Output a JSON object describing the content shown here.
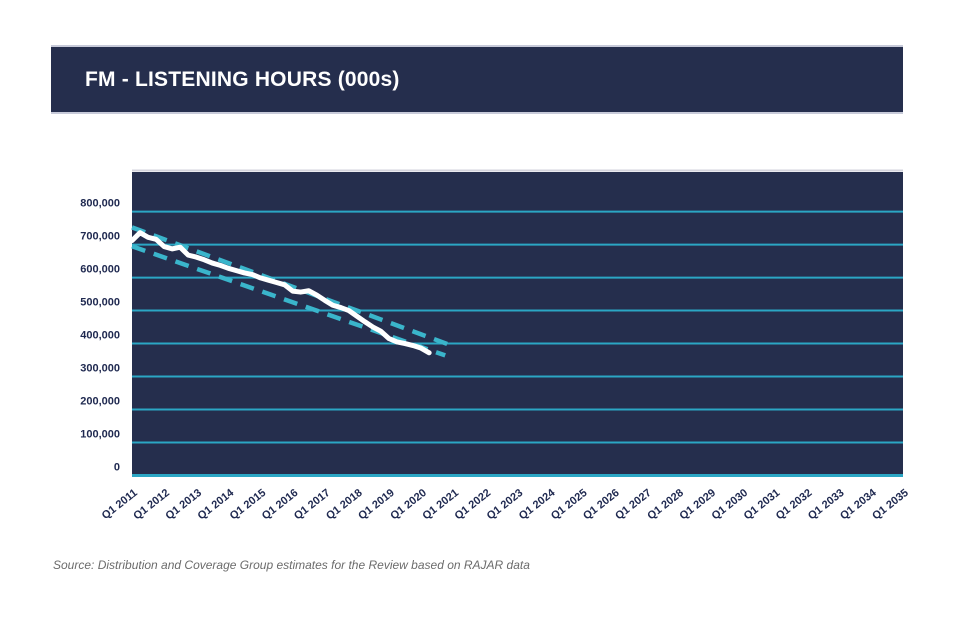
{
  "title": {
    "text": "FM - LISTENING HOURS (000s)"
  },
  "source_note": "Source: Distribution and Coverage Group estimates for the Review based on RAJAR data",
  "colors": {
    "navy": "#252E4D",
    "grid_teal": "#2BA6C4",
    "band_teal": "#3AB5CB",
    "series_white": "#FFFFFF",
    "axis_text": "#1F2950",
    "source_text": "#6B6B6B",
    "light_border": "#C7CAD9",
    "plot_top_border": "#D3D3DC",
    "page_bg": "#FFFFFF"
  },
  "chart_data": {
    "type": "line",
    "title": "FM - LISTENING HOURS (000s)",
    "grid": true,
    "legend": false,
    "x_axis": {
      "tick_labels": [
        "Q1 2011",
        "Q1 2012",
        "Q1 2013",
        "Q1 2014",
        "Q1 2015",
        "Q1 2016",
        "Q1 2017",
        "Q1 2018",
        "Q1 2019",
        "Q1 2020",
        "Q1 2021",
        "Q1 2022",
        "Q1 2023",
        "Q1 2024",
        "Q1 2025",
        "Q1 2026",
        "Q1 2027",
        "Q1 2028",
        "Q1 2029",
        "Q1 2030",
        "Q1 2031",
        "Q1 2032",
        "Q1 2033",
        "Q1 2034",
        "Q1 2035"
      ],
      "quarters_per_tick": 4,
      "total_quarters": 96,
      "label_rotation_deg": -38
    },
    "y_axis": {
      "ticks": [
        0,
        100000,
        200000,
        300000,
        400000,
        500000,
        600000,
        700000,
        800000
      ],
      "tick_labels": [
        "0",
        "100,000",
        "200,000",
        "300,000",
        "400,000",
        "500,000",
        "600,000",
        "700,000",
        "800,000"
      ],
      "max": 920000
    },
    "series": [
      {
        "name": "fm-listening-hours-actual",
        "style": "solid",
        "color": "#FFFFFF",
        "start_quarter": 0,
        "start_label": "Q1 2011",
        "end_label": "Q2 2020",
        "values": [
          712000,
          736000,
          722000,
          716000,
          694000,
          687000,
          692000,
          668000,
          662000,
          654000,
          644000,
          637000,
          628000,
          621000,
          614000,
          609000,
          599000,
          592000,
          585000,
          578000,
          559000,
          556000,
          560000,
          547000,
          531000,
          516000,
          509000,
          500000,
          483000,
          466000,
          450000,
          437000,
          415000,
          405000,
          400000,
          394000,
          386000,
          372000
        ]
      },
      {
        "name": "upper-estimate-band",
        "style": "dashed",
        "color": "#3AB5CB",
        "points": [
          [
            0,
            752000
          ],
          [
            40,
            392000
          ]
        ]
      },
      {
        "name": "lower-estimate-band",
        "style": "dashed",
        "color": "#3AB5CB",
        "points": [
          [
            0,
            695000
          ],
          [
            39,
            364000
          ]
        ]
      }
    ]
  }
}
